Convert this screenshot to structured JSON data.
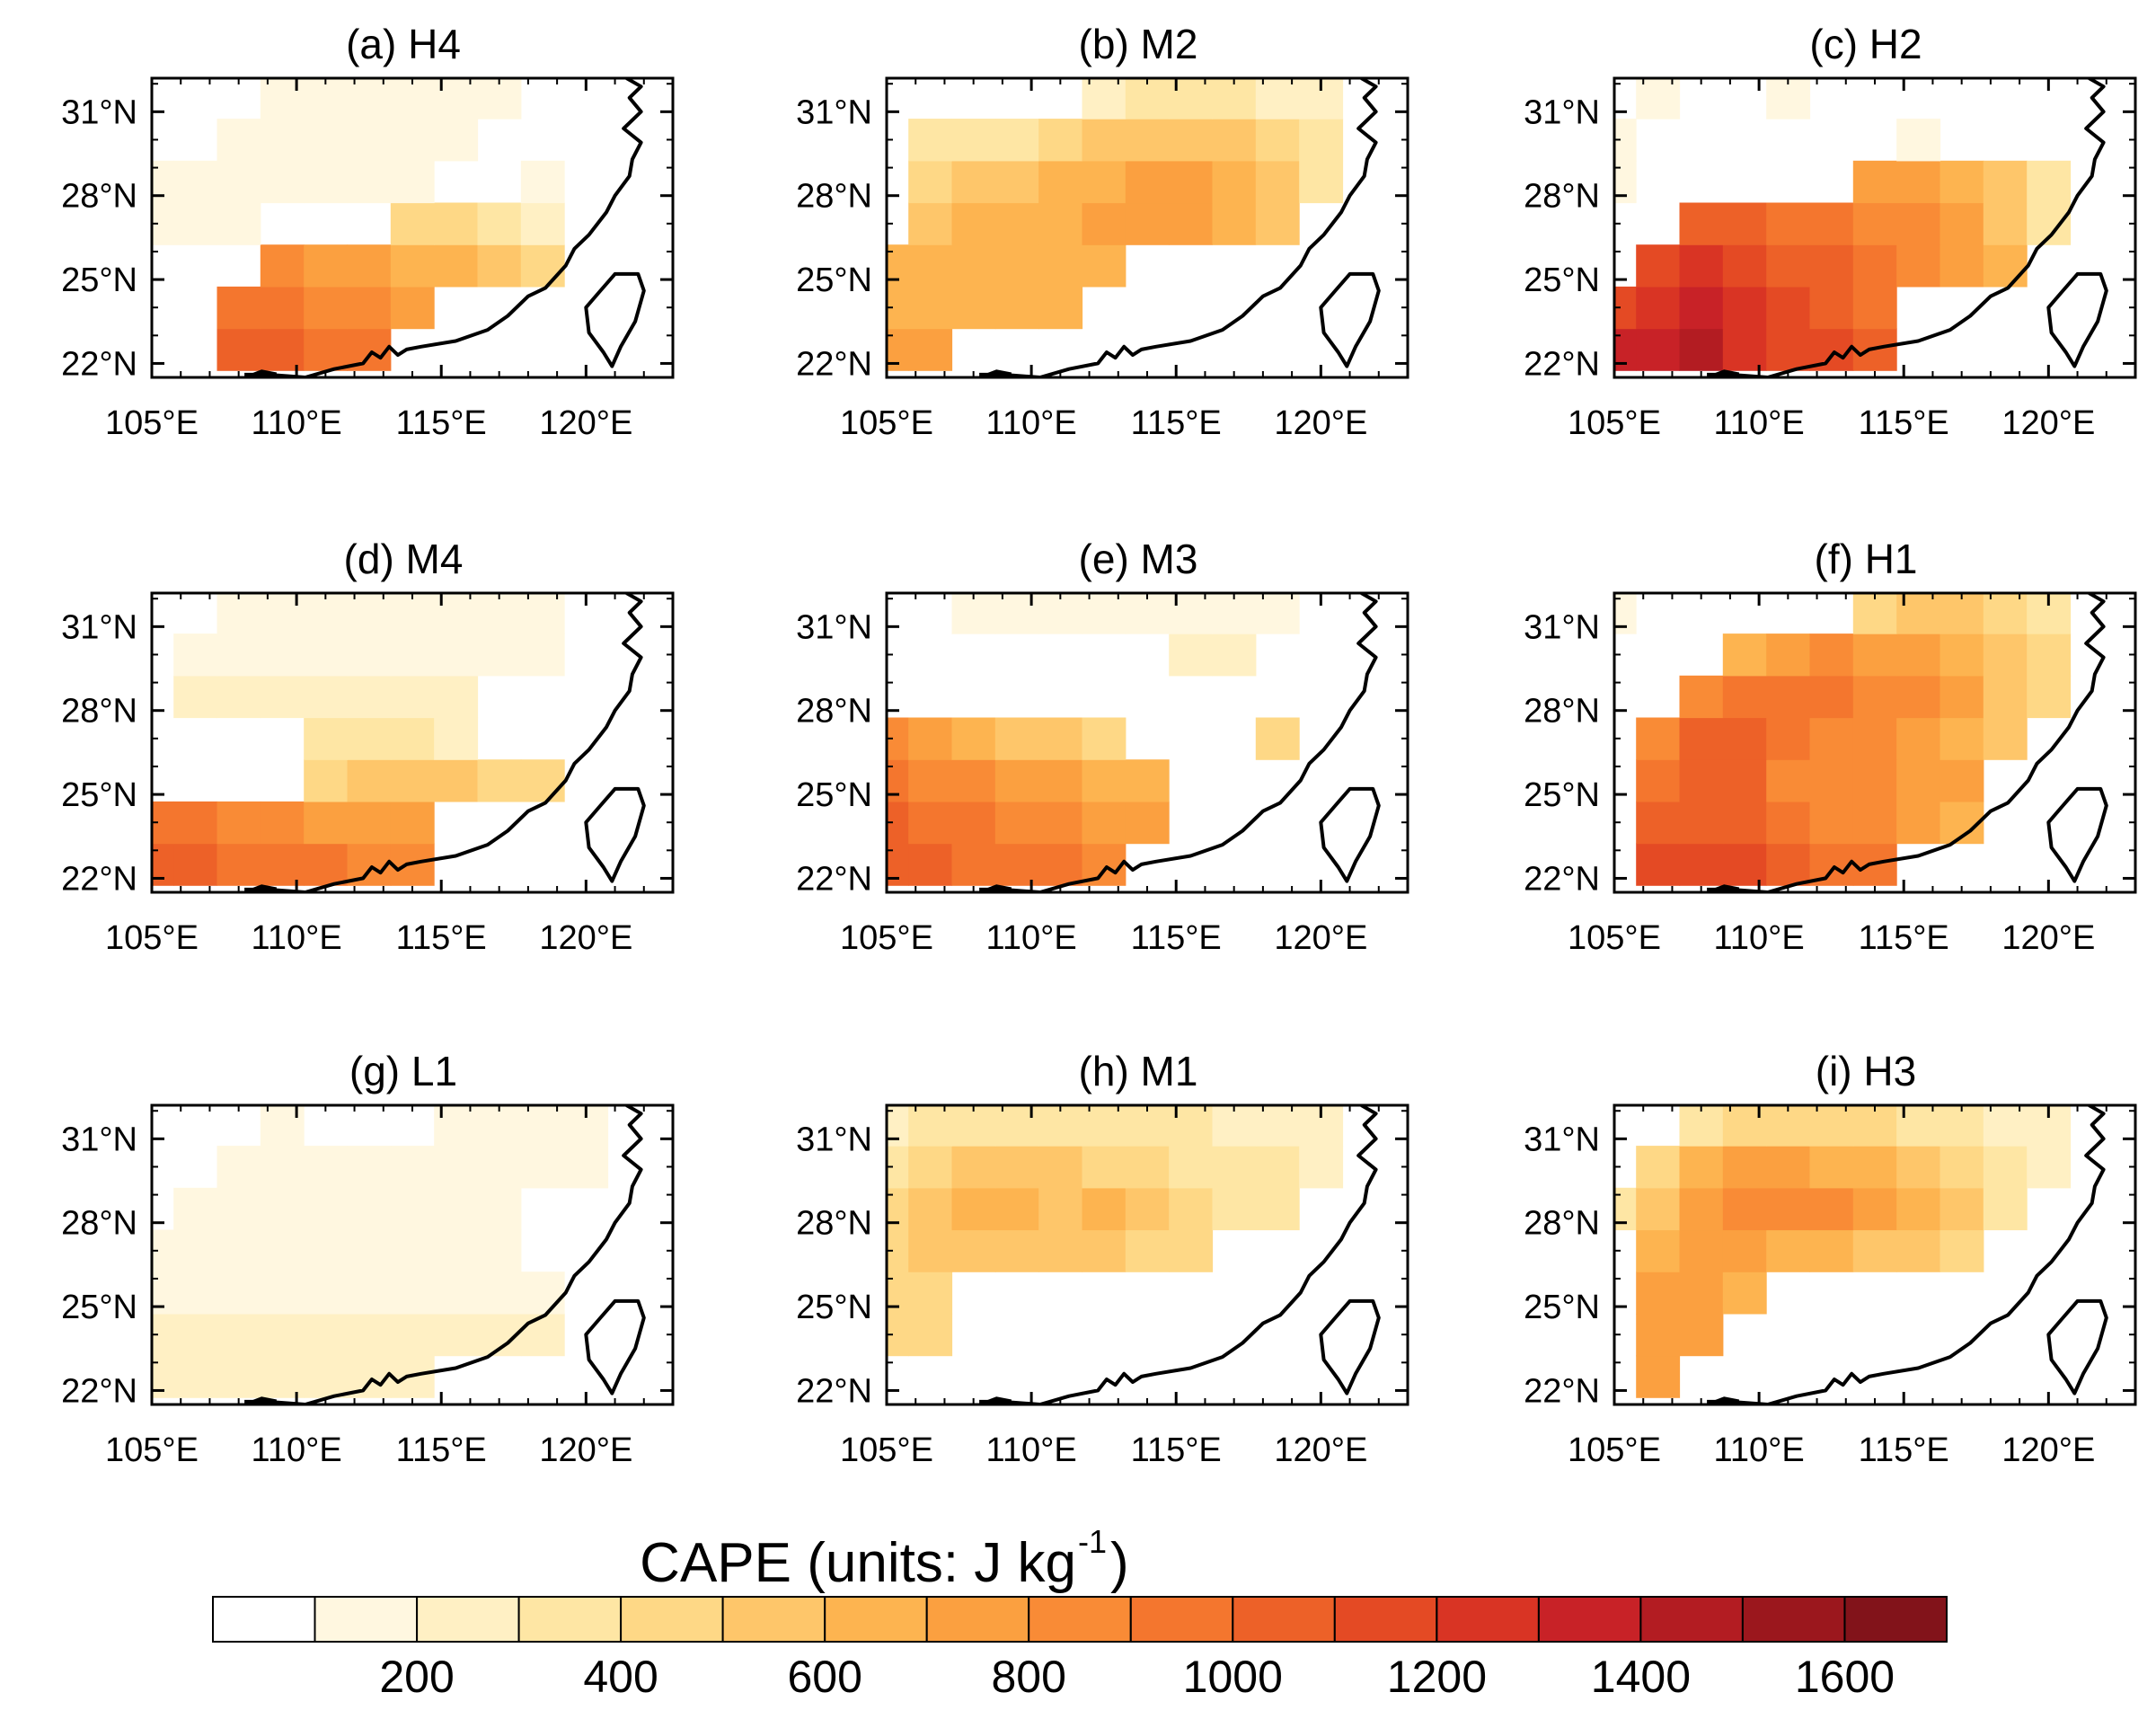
{
  "figure": {
    "colorbar_title": "CAPE (units: J kg",
    "colorbar_superscript": "-1",
    "colorbar_close": ")"
  },
  "chart_data": {
    "type": "heatmap",
    "grid_lon": [
      105,
      106.5,
      108,
      109.5,
      111,
      112.5,
      114,
      115.5,
      117,
      118.5,
      120
    ],
    "grid_lat": [
      22.5,
      24,
      25.5,
      27,
      28.5,
      30,
      31.5
    ],
    "lon_ticks": [
      "105°E",
      "110°E",
      "115°E",
      "120°E"
    ],
    "lat_ticks": [
      "22°N",
      "25°N",
      "28°N",
      "31°N"
    ],
    "lon_range": [
      105,
      123
    ],
    "lat_range": [
      21.5,
      32.2
    ],
    "colorbar": {
      "levels": [
        0,
        100,
        200,
        300,
        400,
        500,
        600,
        700,
        800,
        900,
        1000,
        1100,
        1200,
        1300,
        1400,
        1500,
        1600,
        1700
      ],
      "tick_labels": [
        "200",
        "400",
        "600",
        "800",
        "1000",
        "1200",
        "1400",
        "1600"
      ],
      "colors": [
        "#ffffff",
        "#fff7e0",
        "#fff0c4",
        "#fee6a4",
        "#fed886",
        "#fec66a",
        "#fdb450",
        "#fba040",
        "#f98b36",
        "#f4762e",
        "#ed6128",
        "#e44a24",
        "#d93424",
        "#c82227",
        "#b31c22",
        "#9b171d",
        "#82131a"
      ]
    },
    "panels": [
      {
        "title": "(a) H4",
        "values": [
          [
            null,
            null,
            1050,
            1000,
            950,
            950,
            null,
            null,
            null,
            null,
            null
          ],
          [
            null,
            null,
            950,
            900,
            850,
            800,
            700,
            null,
            null,
            null,
            null
          ],
          [
            null,
            null,
            null,
            800,
            760,
            700,
            650,
            600,
            550,
            400,
            null
          ],
          [
            150,
            150,
            150,
            null,
            null,
            null,
            450,
            400,
            300,
            200,
            null
          ],
          [
            100,
            100,
            100,
            100,
            100,
            100,
            150,
            null,
            null,
            150,
            null
          ],
          [
            80,
            80,
            100,
            100,
            100,
            100,
            100,
            100,
            null,
            null,
            null
          ],
          [
            null,
            null,
            null,
            100,
            100,
            100,
            100,
            100,
            100,
            null,
            null
          ]
        ]
      },
      {
        "title": "(b) M2",
        "values": [
          [
            700,
            700,
            null,
            null,
            null,
            null,
            null,
            null,
            null,
            null,
            null
          ],
          [
            650,
            650,
            650,
            650,
            650,
            null,
            null,
            null,
            null,
            null,
            null
          ],
          [
            600,
            600,
            650,
            650,
            650,
            650,
            null,
            null,
            null,
            null,
            null
          ],
          [
            null,
            500,
            600,
            650,
            650,
            700,
            700,
            700,
            650,
            500,
            null
          ],
          [
            null,
            400,
            500,
            550,
            600,
            650,
            700,
            700,
            650,
            500,
            350
          ],
          [
            null,
            300,
            300,
            350,
            400,
            500,
            550,
            550,
            500,
            400,
            300
          ],
          [
            null,
            null,
            null,
            null,
            null,
            250,
            300,
            300,
            300,
            250,
            200
          ]
        ]
      },
      {
        "title": "(c) H2",
        "values": [
          [
            1300,
            1350,
            1400,
            1250,
            1150,
            1100,
            1000,
            null,
            null,
            null,
            null
          ],
          [
            1150,
            1250,
            1350,
            1250,
            1150,
            1050,
            950,
            null,
            null,
            null,
            null
          ],
          [
            null,
            1100,
            1200,
            1150,
            1050,
            1000,
            900,
            850,
            750,
            600,
            null
          ],
          [
            null,
            null,
            1000,
            1000,
            950,
            900,
            850,
            800,
            700,
            500,
            300
          ],
          [
            100,
            null,
            null,
            null,
            null,
            null,
            700,
            700,
            650,
            500,
            300
          ],
          [
            100,
            null,
            null,
            null,
            null,
            null,
            null,
            100,
            null,
            null,
            null
          ],
          [
            null,
            100,
            null,
            null,
            100,
            null,
            null,
            null,
            null,
            null,
            null
          ]
        ]
      },
      {
        "title": "(d) M4",
        "values": [
          [
            1000,
            1000,
            950,
            900,
            900,
            850,
            850,
            null,
            null,
            null,
            null
          ],
          [
            900,
            900,
            850,
            800,
            750,
            700,
            700,
            null,
            null,
            null,
            null
          ],
          [
            null,
            null,
            null,
            null,
            450,
            500,
            550,
            500,
            450,
            400,
            null
          ],
          [
            null,
            null,
            null,
            null,
            300,
            300,
            300,
            250,
            null,
            null,
            null
          ],
          [
            null,
            250,
            250,
            250,
            200,
            200,
            200,
            200,
            null,
            null,
            null
          ],
          [
            null,
            150,
            150,
            150,
            150,
            150,
            150,
            150,
            150,
            150,
            null
          ],
          [
            null,
            null,
            100,
            100,
            100,
            100,
            100,
            100,
            100,
            100,
            null
          ]
        ]
      },
      {
        "title": "(e) M3",
        "values": [
          [
            1050,
            1000,
            950,
            950,
            900,
            850,
            null,
            null,
            null,
            null,
            null
          ],
          [
            1000,
            950,
            900,
            850,
            800,
            750,
            700,
            null,
            null,
            null,
            null
          ],
          [
            900,
            850,
            800,
            750,
            700,
            650,
            650,
            null,
            null,
            null,
            null
          ],
          [
            800,
            700,
            650,
            550,
            500,
            450,
            null,
            null,
            null,
            400,
            null
          ],
          [
            null,
            null,
            null,
            null,
            null,
            null,
            null,
            null,
            null,
            null,
            null
          ],
          [
            null,
            null,
            null,
            null,
            null,
            null,
            null,
            250,
            250,
            null,
            null
          ],
          [
            null,
            null,
            100,
            100,
            100,
            100,
            100,
            100,
            100,
            100,
            null
          ]
        ]
      },
      {
        "title": "(f) H1",
        "values": [
          [
            null,
            1100,
            1150,
            1100,
            1000,
            950,
            900,
            null,
            null,
            null,
            null
          ],
          [
            null,
            1050,
            1050,
            1000,
            900,
            850,
            800,
            750,
            650,
            null,
            null
          ],
          [
            null,
            950,
            1050,
            1000,
            850,
            800,
            800,
            750,
            700,
            null,
            null
          ],
          [
            null,
            850,
            1000,
            1000,
            950,
            850,
            800,
            750,
            650,
            550,
            null
          ],
          [
            null,
            null,
            850,
            950,
            950,
            900,
            850,
            800,
            700,
            550,
            400
          ],
          [
            null,
            null,
            null,
            650,
            750,
            800,
            750,
            700,
            650,
            550,
            400
          ],
          [
            150,
            null,
            null,
            null,
            null,
            null,
            450,
            500,
            500,
            400,
            300
          ]
        ]
      },
      {
        "title": "(g) L1",
        "values": [
          [
            200,
            200,
            200,
            200,
            200,
            200,
            200,
            null,
            null,
            null,
            null
          ],
          [
            200,
            200,
            200,
            200,
            200,
            200,
            200,
            200,
            200,
            200,
            null
          ],
          [
            150,
            150,
            150,
            150,
            180,
            180,
            180,
            180,
            180,
            150,
            null
          ],
          [
            150,
            150,
            150,
            120,
            120,
            120,
            120,
            100,
            100,
            80,
            null
          ],
          [
            null,
            100,
            100,
            100,
            100,
            100,
            100,
            100,
            100,
            80,
            80
          ],
          [
            null,
            null,
            100,
            100,
            100,
            100,
            100,
            100,
            100,
            100,
            100
          ],
          [
            null,
            null,
            null,
            100,
            null,
            null,
            null,
            100,
            100,
            100,
            100
          ]
        ]
      },
      {
        "title": "(h) M1",
        "values": [
          [
            null,
            null,
            null,
            null,
            null,
            null,
            null,
            null,
            null,
            null,
            null
          ],
          [
            400,
            400,
            null,
            null,
            null,
            null,
            null,
            null,
            null,
            null,
            null
          ],
          [
            400,
            450,
            null,
            null,
            null,
            null,
            null,
            null,
            null,
            null,
            null
          ],
          [
            450,
            500,
            550,
            550,
            500,
            500,
            450,
            400,
            null,
            null,
            null
          ],
          [
            400,
            550,
            650,
            600,
            550,
            600,
            500,
            400,
            350,
            300,
            null
          ],
          [
            300,
            450,
            500,
            550,
            500,
            450,
            400,
            350,
            300,
            300,
            250
          ],
          [
            250,
            300,
            300,
            350,
            350,
            300,
            300,
            300,
            250,
            250,
            200
          ]
        ]
      },
      {
        "title": "(i) H3",
        "values": [
          [
            null,
            750,
            null,
            null,
            null,
            null,
            null,
            null,
            null,
            null,
            null
          ],
          [
            null,
            750,
            700,
            null,
            null,
            null,
            null,
            null,
            null,
            null,
            null
          ],
          [
            null,
            700,
            700,
            650,
            null,
            null,
            null,
            null,
            null,
            null,
            null
          ],
          [
            null,
            650,
            700,
            700,
            650,
            600,
            550,
            500,
            400,
            null,
            null
          ],
          [
            300,
            550,
            750,
            850,
            800,
            800,
            750,
            650,
            500,
            300,
            null
          ],
          [
            null,
            400,
            600,
            700,
            700,
            650,
            600,
            550,
            450,
            300,
            200
          ],
          [
            null,
            null,
            300,
            400,
            450,
            450,
            400,
            350,
            300,
            250,
            200
          ]
        ]
      }
    ]
  }
}
